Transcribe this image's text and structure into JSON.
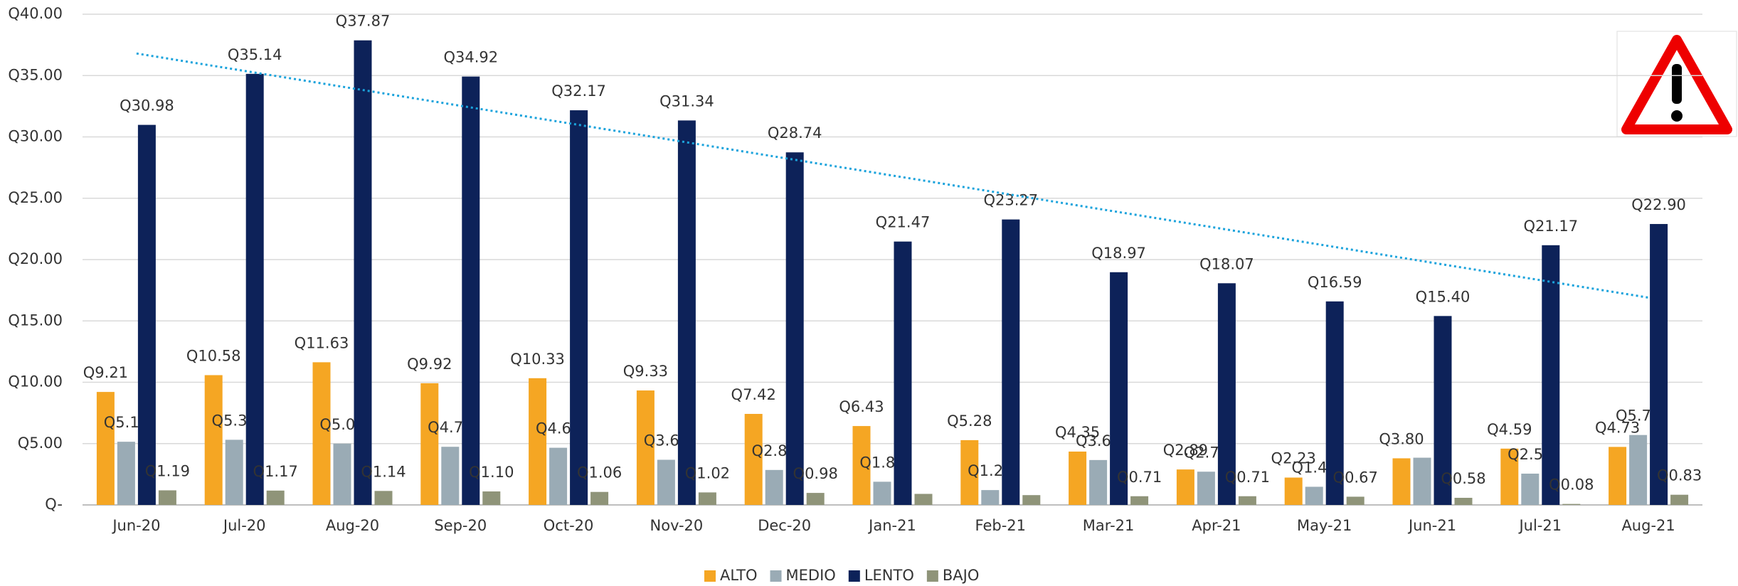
{
  "chart_data": {
    "type": "bar",
    "categories": [
      "Jun-20",
      "Jul-20",
      "Aug-20",
      "Sep-20",
      "Oct-20",
      "Nov-20",
      "Dec-20",
      "Jan-21",
      "Feb-21",
      "Mar-21",
      "Apr-21",
      "May-21",
      "Jun-21",
      "Jul-21",
      "Aug-21"
    ],
    "series": [
      {
        "name": "ALTO",
        "color": "#f5a623",
        "values": [
          9.21,
          10.58,
          11.63,
          9.92,
          10.33,
          9.33,
          7.42,
          6.43,
          5.28,
          4.35,
          2.89,
          2.23,
          3.8,
          4.59,
          4.73
        ],
        "value_labels": [
          "Q9.21",
          "Q10.58",
          "Q11.63",
          "Q9.92",
          "Q10.33",
          "Q9.33",
          "Q7.42",
          "Q6.43",
          "Q5.28",
          "Q4.35",
          "Q2.89",
          "Q2.23",
          "Q3.80",
          "Q4.59",
          "Q4.73"
        ]
      },
      {
        "name": "MEDIO",
        "color": "#9aabb5",
        "values": [
          5.15,
          5.31,
          5.0,
          4.74,
          4.66,
          3.68,
          2.85,
          1.89,
          1.21,
          3.66,
          2.71,
          1.48,
          3.85,
          2.55,
          5.7
        ],
        "value_labels": [
          "Q5.15",
          "Q5.31",
          "Q5.00",
          "Q4.74",
          "Q4.66",
          "Q3.68",
          "Q2.85",
          "Q1.89",
          "Q1.21",
          "Q3.66",
          "Q2.71",
          "Q1.48",
          null,
          "Q2.55",
          "Q5.70"
        ]
      },
      {
        "name": "LENTO",
        "color": "#0d2259",
        "values": [
          30.98,
          35.14,
          37.87,
          34.92,
          32.17,
          31.34,
          28.74,
          21.47,
          23.27,
          18.97,
          18.07,
          16.59,
          15.4,
          21.17,
          22.9
        ],
        "value_labels": [
          "Q30.98",
          "Q35.14",
          "Q37.87",
          "Q34.92",
          "Q32.17",
          "Q31.34",
          "Q28.74",
          "Q21.47",
          "Q23.27",
          "Q18.97",
          "Q18.07",
          "Q16.59",
          "Q15.40",
          "Q21.17",
          "Q22.90"
        ]
      },
      {
        "name": "BAJO",
        "color": "#8f9479",
        "values": [
          1.19,
          1.17,
          1.14,
          1.1,
          1.06,
          1.02,
          0.98,
          0.9,
          0.8,
          0.71,
          0.71,
          0.67,
          0.58,
          0.08,
          0.83
        ],
        "value_labels": [
          "Q1.19",
          "Q1.17",
          "Q1.14",
          "Q1.10",
          "Q1.06",
          "Q1.02",
          "Q0.98",
          null,
          null,
          "Q0.71",
          "Q0.71",
          "Q0.67",
          "Q0.58",
          "Q0.08",
          "Q0.83"
        ]
      }
    ],
    "trendline": {
      "series": "LENTO",
      "start": 36.8,
      "end": 16.9,
      "color": "#1ba3dc"
    },
    "ylim": [
      0,
      40
    ],
    "yticks": [
      {
        "value": 0,
        "label": "Q-"
      },
      {
        "value": 5,
        "label": "Q5.00"
      },
      {
        "value": 10,
        "label": "Q10.00"
      },
      {
        "value": 15,
        "label": "Q15.00"
      },
      {
        "value": 20,
        "label": "Q20.00"
      },
      {
        "value": 25,
        "label": "Q25.00"
      },
      {
        "value": 30,
        "label": "Q30.00"
      },
      {
        "value": 35,
        "label": "Q35.00"
      },
      {
        "value": 40,
        "label": "Q40.00"
      }
    ],
    "grid": true,
    "legend": "bottom"
  }
}
